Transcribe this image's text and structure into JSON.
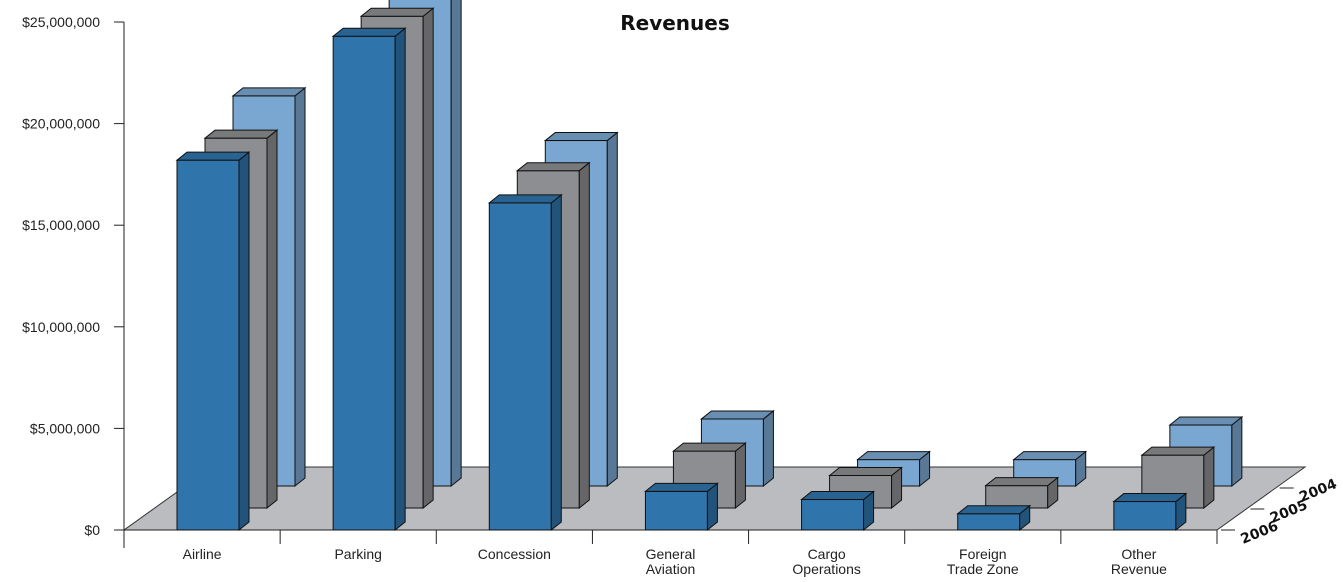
{
  "chart_data": {
    "type": "bar",
    "title": "Revenues",
    "xlabel": "",
    "ylabel": "",
    "ylim": [
      0,
      25000000
    ],
    "y_ticks": [
      "$0",
      "$5,000,000",
      "$10,000,000",
      "$15,000,000",
      "$20,000,000",
      "$25,000,000"
    ],
    "categories": [
      [
        "Airline"
      ],
      [
        "Parking"
      ],
      [
        "Concession"
      ],
      [
        "General",
        "Aviation"
      ],
      [
        "Cargo",
        "Operations"
      ],
      [
        "Foreign",
        "Trade Zone"
      ],
      [
        "Other",
        "Revenue"
      ]
    ],
    "series": [
      {
        "name": "2004",
        "color": "#7aa7d1",
        "values": [
          19200000,
          24200000,
          17000000,
          3300000,
          1300000,
          1300000,
          3000000
        ]
      },
      {
        "name": "2005",
        "color": "#8d8e91",
        "values": [
          18200000,
          24200000,
          16600000,
          2800000,
          1600000,
          1100000,
          2600000
        ]
      },
      {
        "name": "2006",
        "color": "#2f74ab",
        "values": [
          18200000,
          24300000,
          16100000,
          1900000,
          1500000,
          800000,
          1400000
        ]
      }
    ],
    "grid": false,
    "legend": "depth-axis-right"
  }
}
